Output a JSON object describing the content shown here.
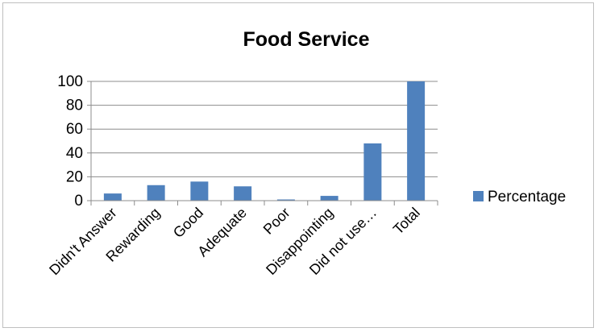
{
  "chart_data": {
    "type": "bar",
    "title": "Food Service",
    "categories": [
      "Didn't Answer",
      "Rewarding",
      "Good",
      "Adequate",
      "Poor",
      "Disappointing",
      "Did not use…",
      "Total"
    ],
    "series": [
      {
        "name": "Percentage",
        "values": [
          6,
          13,
          16,
          12,
          1,
          4,
          48,
          100
        ]
      }
    ],
    "ylim": [
      0,
      100
    ],
    "yticks": [
      0,
      20,
      40,
      60,
      80,
      100
    ],
    "grid": true,
    "legend_position": "right",
    "colors": {
      "bar": "#4f81bd",
      "grid": "#8c8c8c",
      "axis": "#8c8c8c"
    }
  }
}
